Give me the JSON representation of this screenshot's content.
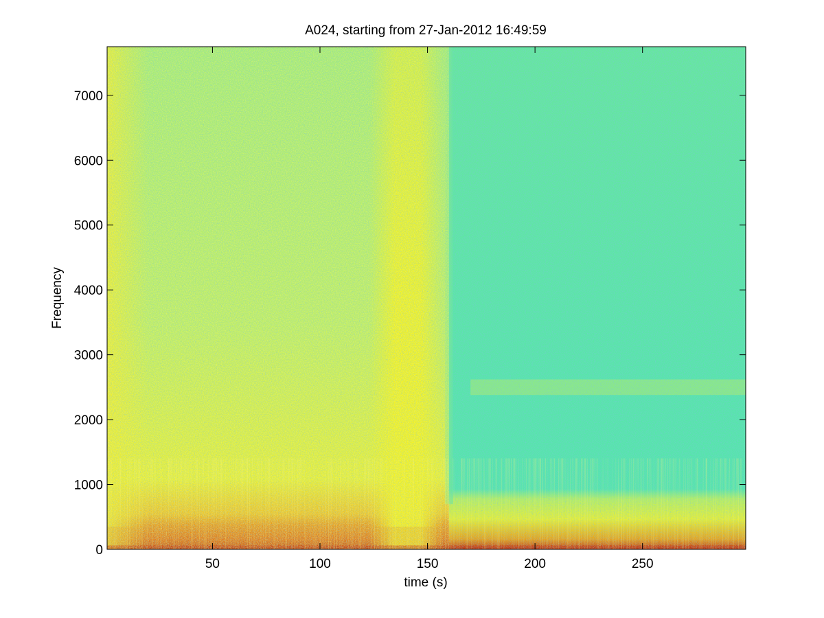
{
  "chart_data": {
    "type": "heatmap",
    "subtype": "spectrogram",
    "title": "A024, starting from 27-Jan-2012 16:49:59",
    "xlabel": "time (s)",
    "ylabel": "Frequency",
    "xlim": [
      1,
      298
    ],
    "ylim": [
      0,
      7750
    ],
    "xticks": [
      50,
      100,
      150,
      200,
      250
    ],
    "yticks": [
      0,
      1000,
      2000,
      3000,
      4000,
      5000,
      6000,
      7000
    ],
    "grid": false,
    "colormap": "jet",
    "colors": {
      "low": "#3fe0c8",
      "mid": "#7ff08a",
      "high": "#f4f020",
      "peak": "#d23a10"
    },
    "regions": [
      {
        "name": "broadband energy 0-150 s",
        "t": [
          1,
          158
        ],
        "f": [
          0,
          7750
        ],
        "level": "mid-high"
      },
      {
        "name": "vertical band",
        "t": [
          126,
          156
        ],
        "f": [
          0,
          7750
        ],
        "level": "high"
      },
      {
        "name": "quiet region after 160 s",
        "t": [
          160,
          298
        ],
        "f": [
          700,
          7750
        ],
        "level": "low"
      },
      {
        "name": "low-frequency energy",
        "t": [
          1,
          298
        ],
        "f": [
          0,
          700
        ],
        "level": "high"
      },
      {
        "name": "tonal line ~2500 Hz",
        "t": [
          170,
          298
        ],
        "f": [
          2380,
          2620
        ],
        "level": "mid-high"
      }
    ]
  }
}
